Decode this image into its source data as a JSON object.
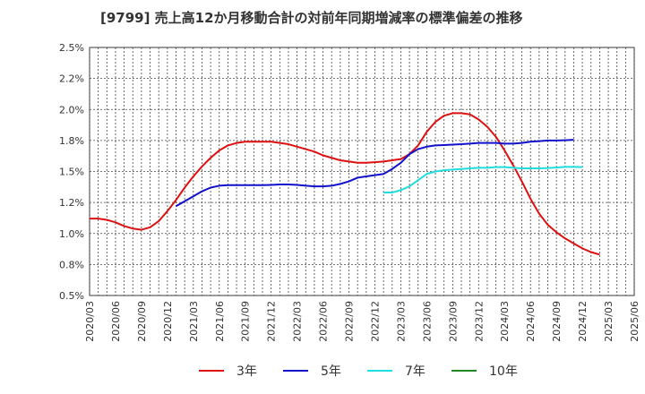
{
  "chart_data": {
    "type": "line",
    "title": "[9799]  売上高12か月移動合計の対前年同期増減率の標準偏差の推移",
    "y_ticks": [
      "0.5%",
      "0.8%",
      "1.0%",
      "1.2%",
      "1.5%",
      "1.8%",
      "2.0%",
      "2.2%",
      "2.5%"
    ],
    "y_tick_values": [
      0.5,
      0.75,
      1.0,
      1.25,
      1.5,
      1.75,
      2.0,
      2.25,
      2.5
    ],
    "ylim": [
      0.5,
      2.5
    ],
    "x_ticks": [
      "2020/03",
      "2020/06",
      "2020/09",
      "2020/12",
      "2021/03",
      "2021/06",
      "2021/09",
      "2021/12",
      "2022/03",
      "2022/06",
      "2022/09",
      "2022/12",
      "2023/03",
      "2023/06",
      "2023/09",
      "2023/12",
      "2024/03",
      "2024/06",
      "2024/09",
      "2024/12",
      "2025/03",
      "2025/06"
    ],
    "grid": true,
    "legend_position": "bottom",
    "series": [
      {
        "name": "3年",
        "color": "#dd1111",
        "start": "2020/03",
        "values": [
          1.12,
          1.12,
          1.11,
          1.09,
          1.06,
          1.04,
          1.03,
          1.05,
          1.1,
          1.18,
          1.27,
          1.37,
          1.46,
          1.54,
          1.61,
          1.67,
          1.71,
          1.73,
          1.74,
          1.74,
          1.74,
          1.74,
          1.73,
          1.72,
          1.7,
          1.68,
          1.66,
          1.63,
          1.61,
          1.59,
          1.58,
          1.57,
          1.57,
          1.575,
          1.58,
          1.59,
          1.6,
          1.64,
          1.71,
          1.82,
          1.9,
          1.95,
          1.97,
          1.97,
          1.96,
          1.92,
          1.86,
          1.78,
          1.67,
          1.55,
          1.42,
          1.28,
          1.16,
          1.07,
          1.01,
          0.96,
          0.92,
          0.88,
          0.85,
          0.83
        ]
      },
      {
        "name": "5年",
        "color": "#1111cc",
        "start": "2021/01",
        "values": [
          1.22,
          1.26,
          1.3,
          1.34,
          1.37,
          1.385,
          1.39,
          1.39,
          1.39,
          1.39,
          1.39,
          1.392,
          1.395,
          1.395,
          1.392,
          1.385,
          1.38,
          1.38,
          1.385,
          1.4,
          1.42,
          1.45,
          1.46,
          1.47,
          1.48,
          1.52,
          1.57,
          1.64,
          1.68,
          1.7,
          1.71,
          1.713,
          1.717,
          1.72,
          1.725,
          1.73,
          1.73,
          1.73,
          1.725,
          1.725,
          1.73,
          1.74,
          1.745,
          1.75,
          1.75,
          1.752,
          1.755
        ]
      },
      {
        "name": "7年",
        "color": "#22dddd",
        "start": "2023/01",
        "values": [
          1.33,
          1.33,
          1.35,
          1.38,
          1.43,
          1.48,
          1.5,
          1.51,
          1.515,
          1.52,
          1.525,
          1.53,
          1.53,
          1.535,
          1.535,
          1.53,
          1.525,
          1.525,
          1.525,
          1.528,
          1.532,
          1.537,
          1.537,
          1.535
        ]
      },
      {
        "name": "10年",
        "color": "#228822",
        "start": "2020/03",
        "values": []
      }
    ]
  }
}
